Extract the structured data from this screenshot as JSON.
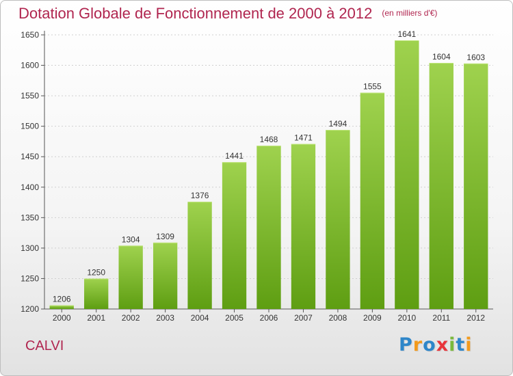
{
  "header": {
    "title": "Dotation Globale de Fonctionnement de 2000 à 2012",
    "unit_note": "(en milliers d'€)"
  },
  "footer": {
    "city": "CALVI",
    "brand_letters": [
      {
        "ch": "P",
        "color": "#2e86c9"
      },
      {
        "ch": "r",
        "color": "#f29a1c"
      },
      {
        "ch": "o",
        "color": "#2e86c9"
      },
      {
        "ch": "x",
        "color": "#e8343a"
      },
      {
        "ch": "i",
        "color": "#7ab93c"
      },
      {
        "ch": "t",
        "color": "#2e86c9"
      },
      {
        "ch": "i",
        "color": "#f29a1c"
      }
    ]
  },
  "colors": {
    "title": "#b0254f",
    "bar_top": "#9fd24e",
    "bar_bottom": "#5e9e12"
  },
  "chart_data": {
    "type": "bar",
    "title": "Dotation Globale de Fonctionnement de 2000 à 2012",
    "subtitle": "(en milliers d'€)",
    "categories": [
      "2000",
      "2001",
      "2002",
      "2003",
      "2004",
      "2005",
      "2006",
      "2007",
      "2008",
      "2009",
      "2010",
      "2011",
      "2012"
    ],
    "values": [
      1206,
      1250,
      1304,
      1309,
      1376,
      1441,
      1468,
      1471,
      1494,
      1555,
      1641,
      1604,
      1603
    ],
    "yticks": [
      1200,
      1250,
      1300,
      1350,
      1400,
      1450,
      1500,
      1550,
      1600,
      1650
    ],
    "ylim": [
      1200,
      1650
    ],
    "grid": true,
    "data_labels": true
  }
}
